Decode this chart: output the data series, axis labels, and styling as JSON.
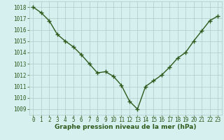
{
  "x": [
    0,
    1,
    2,
    3,
    4,
    5,
    6,
    7,
    8,
    9,
    10,
    11,
    12,
    13,
    14,
    15,
    16,
    17,
    18,
    19,
    20,
    21,
    22,
    23
  ],
  "y": [
    1018.0,
    1017.5,
    1016.8,
    1015.6,
    1015.0,
    1014.5,
    1013.8,
    1013.0,
    1012.2,
    1012.3,
    1011.9,
    1011.1,
    1009.7,
    1009.0,
    1011.0,
    1011.5,
    1012.0,
    1012.7,
    1013.5,
    1014.0,
    1015.0,
    1015.9,
    1016.8,
    1017.2
  ],
  "line_color": "#2d5a1b",
  "marker": "+",
  "markersize": 4,
  "linewidth": 1.0,
  "bg_color": "#d6f0f0",
  "grid_color": "#b0c8c8",
  "xlabel": "Graphe pression niveau de la mer (hPa)",
  "xlabel_fontsize": 6.5,
  "xlabel_color": "#2d5a1b",
  "tick_fontsize": 5.5,
  "ylim": [
    1008.5,
    1018.5
  ],
  "xlim": [
    -0.5,
    23.5
  ],
  "yticks": [
    1009,
    1010,
    1011,
    1012,
    1013,
    1014,
    1015,
    1016,
    1017,
    1018
  ],
  "xticks": [
    0,
    1,
    2,
    3,
    4,
    5,
    6,
    7,
    8,
    9,
    10,
    11,
    12,
    13,
    14,
    15,
    16,
    17,
    18,
    19,
    20,
    21,
    22,
    23
  ]
}
